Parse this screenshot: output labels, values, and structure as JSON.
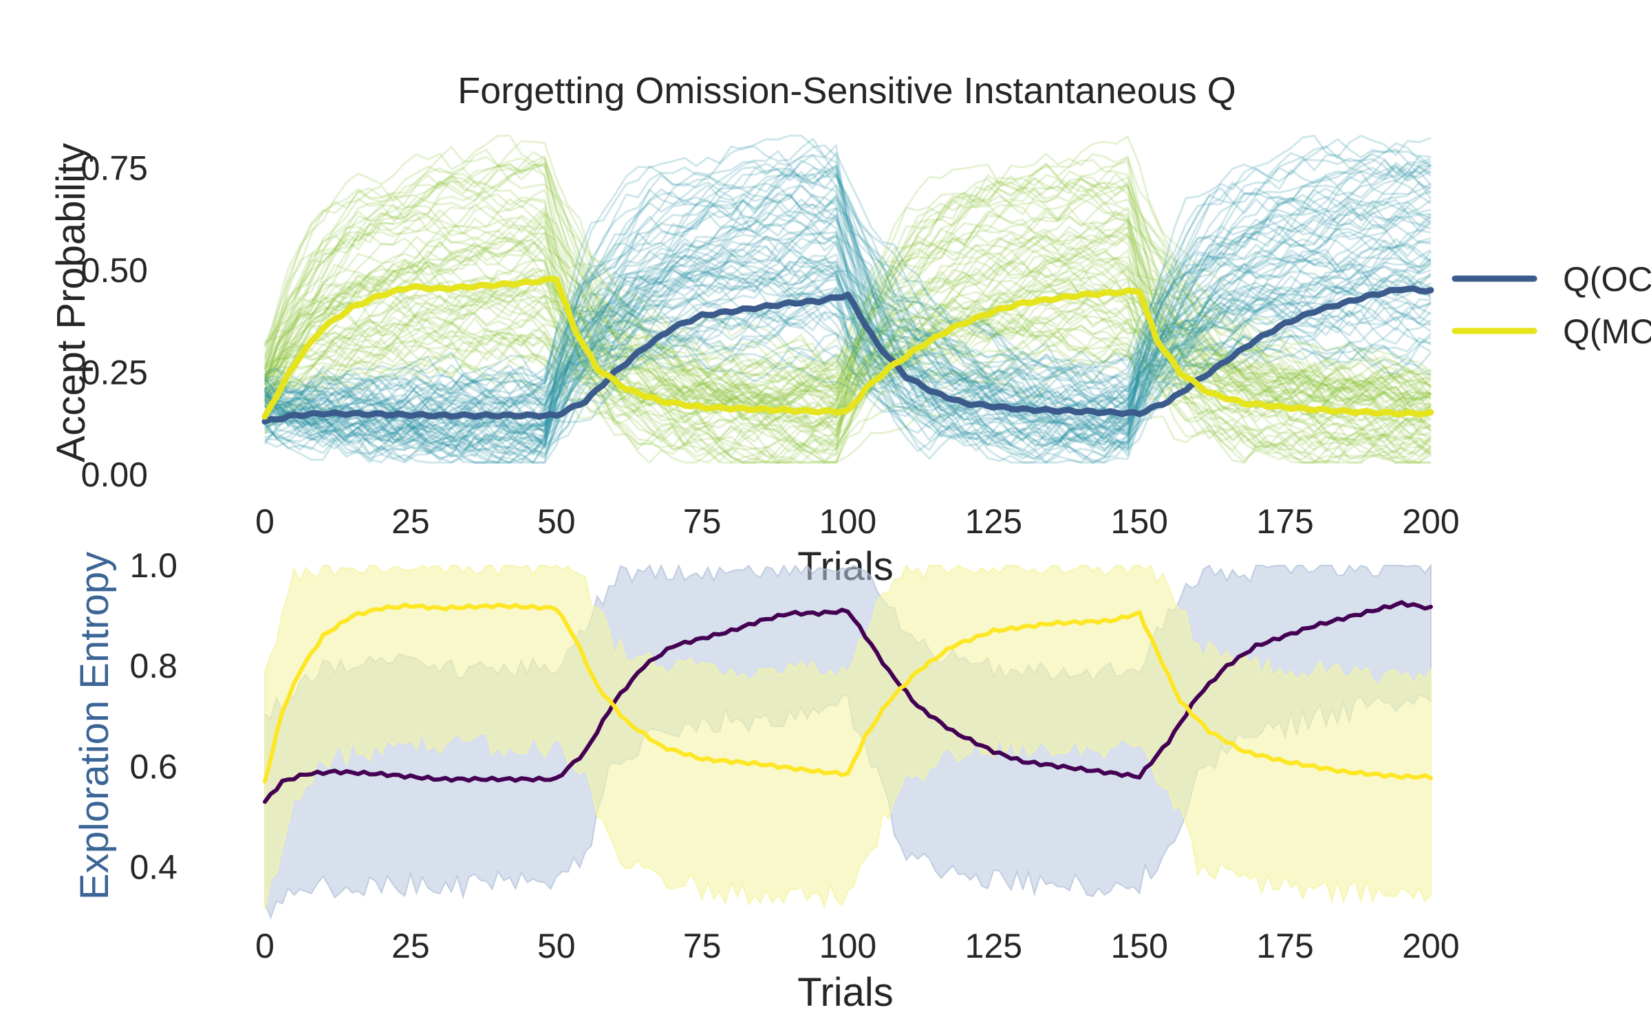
{
  "colors": {
    "oc_mean": "#3b5b8c",
    "mc_mean": "#e5e41d",
    "oc_samples": "#2a93a3",
    "mc_samples": "#8ec63c",
    "entropy_purple": "#440154",
    "entropy_yellow": "#fde725",
    "band_blue": "#b7c6dc",
    "band_yellow": "#f4f4a6",
    "ylabel_blue": "#3b6596",
    "text": "#262626"
  },
  "chart_data": [
    {
      "type": "line",
      "title": "Forgetting Omission-Sensitive Instantaneous Q",
      "xlabel": "Trials",
      "ylabel": "Accept Probability",
      "xlim": [
        0,
        200
      ],
      "ylim": [
        0.0,
        0.8
      ],
      "xticks": [
        "0",
        "25",
        "50",
        "75",
        "100",
        "125",
        "150",
        "175",
        "200"
      ],
      "yticks": [
        "0.00",
        "0.25",
        "0.50",
        "0.75"
      ],
      "grid": false,
      "legend": {
        "placement": "right-outside",
        "entries": [
          "Q(OC",
          "Q(MC"
        ]
      },
      "block_boundaries": [
        0,
        50,
        100,
        150,
        200
      ],
      "series": [
        {
          "name": "Q(OC",
          "x": [
            0,
            5,
            10,
            20,
            30,
            40,
            50,
            55,
            60,
            65,
            70,
            75,
            80,
            85,
            90,
            95,
            100,
            105,
            110,
            115,
            120,
            130,
            140,
            150,
            155,
            160,
            165,
            170,
            175,
            180,
            185,
            190,
            195,
            200
          ],
          "values": [
            0.13,
            0.145,
            0.15,
            0.148,
            0.145,
            0.145,
            0.145,
            0.18,
            0.25,
            0.31,
            0.36,
            0.39,
            0.4,
            0.41,
            0.42,
            0.425,
            0.44,
            0.32,
            0.24,
            0.2,
            0.175,
            0.16,
            0.155,
            0.15,
            0.18,
            0.23,
            0.28,
            0.33,
            0.37,
            0.4,
            0.42,
            0.44,
            0.455,
            0.45
          ]
        },
        {
          "name": "Q(MC",
          "x": [
            0,
            3,
            6,
            10,
            15,
            20,
            25,
            30,
            35,
            40,
            45,
            50,
            53,
            57,
            62,
            68,
            75,
            85,
            95,
            100,
            103,
            107,
            112,
            118,
            125,
            130,
            135,
            140,
            145,
            150,
            153,
            157,
            162,
            168,
            175,
            185,
            195,
            200
          ],
          "values": [
            0.14,
            0.22,
            0.29,
            0.36,
            0.41,
            0.44,
            0.46,
            0.455,
            0.46,
            0.465,
            0.47,
            0.48,
            0.36,
            0.26,
            0.21,
            0.18,
            0.165,
            0.16,
            0.155,
            0.155,
            0.21,
            0.26,
            0.31,
            0.36,
            0.4,
            0.42,
            0.43,
            0.44,
            0.445,
            0.45,
            0.33,
            0.25,
            0.2,
            0.175,
            0.165,
            0.155,
            0.15,
            0.15
          ]
        }
      ]
    },
    {
      "type": "area",
      "xlabel": "Trials",
      "ylabel": "Exploration Entropy",
      "xlim": [
        0,
        200
      ],
      "ylim": [
        0.25,
        1.0
      ],
      "xticks": [
        "0",
        "25",
        "50",
        "75",
        "100",
        "125",
        "150",
        "175",
        "200"
      ],
      "yticks": [
        "0.4",
        "0.6",
        "0.8",
        "1.0"
      ],
      "grid": false,
      "series": [
        {
          "color_key": "entropy_purple",
          "x": [
            0,
            3,
            7,
            12,
            20,
            30,
            40,
            50,
            55,
            60,
            65,
            70,
            75,
            80,
            85,
            90,
            95,
            100,
            103,
            107,
            112,
            118,
            125,
            130,
            140,
            150,
            155,
            160,
            165,
            170,
            175,
            180,
            190,
            195,
            200
          ],
          "values": [
            0.53,
            0.57,
            0.585,
            0.59,
            0.585,
            0.575,
            0.575,
            0.575,
            0.63,
            0.73,
            0.8,
            0.84,
            0.855,
            0.87,
            0.89,
            0.905,
            0.905,
            0.91,
            0.86,
            0.79,
            0.72,
            0.67,
            0.63,
            0.61,
            0.595,
            0.58,
            0.65,
            0.74,
            0.8,
            0.84,
            0.86,
            0.88,
            0.91,
            0.925,
            0.915
          ]
        },
        {
          "color_key": "entropy_yellow",
          "x": [
            0,
            3,
            6,
            10,
            15,
            20,
            25,
            30,
            40,
            50,
            53,
            57,
            62,
            68,
            75,
            85,
            95,
            100,
            103,
            107,
            112,
            118,
            125,
            135,
            145,
            150,
            153,
            157,
            162,
            168,
            175,
            185,
            195,
            200
          ],
          "values": [
            0.57,
            0.71,
            0.79,
            0.86,
            0.9,
            0.915,
            0.92,
            0.915,
            0.92,
            0.915,
            0.86,
            0.76,
            0.69,
            0.64,
            0.615,
            0.605,
            0.59,
            0.585,
            0.66,
            0.73,
            0.79,
            0.84,
            0.87,
            0.885,
            0.89,
            0.905,
            0.83,
            0.73,
            0.67,
            0.63,
            0.61,
            0.59,
            0.58,
            0.58
          ]
        }
      ],
      "bands": [
        {
          "color_key": "band_blue",
          "x": [
            0,
            10,
            20,
            30,
            40,
            50,
            55,
            60,
            70,
            80,
            90,
            100,
            105,
            110,
            120,
            130,
            140,
            150,
            155,
            160,
            170,
            180,
            190,
            200
          ],
          "lower": [
            0.32,
            0.36,
            0.37,
            0.36,
            0.37,
            0.36,
            0.42,
            0.62,
            0.67,
            0.69,
            0.7,
            0.72,
            0.58,
            0.42,
            0.38,
            0.37,
            0.36,
            0.37,
            0.42,
            0.6,
            0.66,
            0.7,
            0.72,
            0.74
          ],
          "upper": [
            0.7,
            0.79,
            0.81,
            0.8,
            0.79,
            0.8,
            0.88,
            0.98,
            0.99,
            0.99,
            1.0,
            1.0,
            0.96,
            0.86,
            0.8,
            0.79,
            0.78,
            0.8,
            0.9,
            0.98,
            0.99,
            1.0,
            1.0,
            1.0
          ]
        },
        {
          "color_key": "band_yellow",
          "x": [
            0,
            5,
            10,
            20,
            30,
            40,
            50,
            55,
            60,
            70,
            80,
            90,
            100,
            105,
            110,
            120,
            130,
            140,
            150,
            155,
            160,
            170,
            180,
            190,
            200
          ],
          "lower": [
            0.32,
            0.54,
            0.62,
            0.64,
            0.65,
            0.64,
            0.64,
            0.58,
            0.42,
            0.37,
            0.35,
            0.34,
            0.34,
            0.46,
            0.58,
            0.63,
            0.64,
            0.64,
            0.64,
            0.56,
            0.4,
            0.37,
            0.35,
            0.35,
            0.34
          ],
          "upper": [
            0.78,
            0.98,
            1.0,
            1.0,
            1.0,
            1.0,
            1.0,
            0.96,
            0.84,
            0.8,
            0.79,
            0.79,
            0.79,
            0.92,
            0.99,
            1.0,
            1.0,
            1.0,
            1.0,
            0.96,
            0.84,
            0.8,
            0.79,
            0.78,
            0.78
          ]
        }
      ]
    }
  ]
}
